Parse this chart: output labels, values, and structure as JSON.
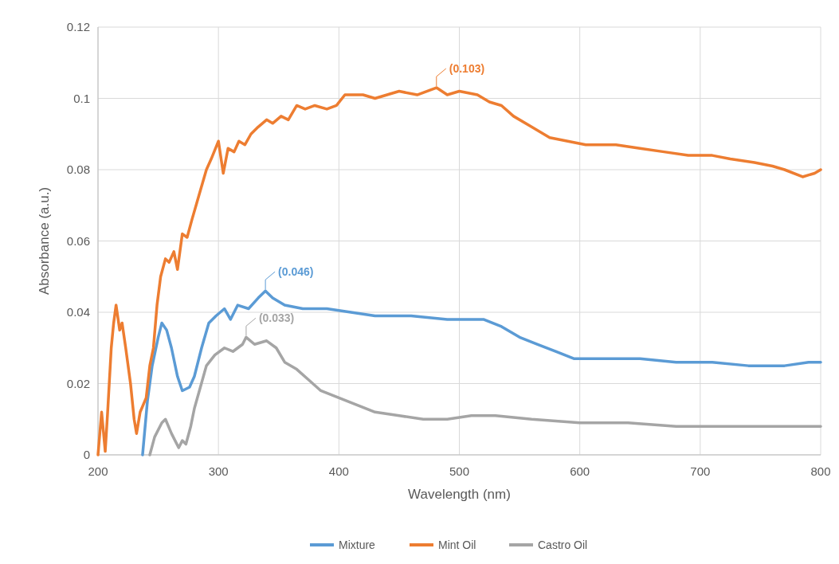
{
  "chart_data": {
    "type": "line",
    "xlabel": "Wavelength (nm)",
    "ylabel": "Absorbance (a.u.)",
    "xlim": [
      200,
      800
    ],
    "ylim": [
      0,
      0.12
    ],
    "xticks": [
      200,
      300,
      400,
      500,
      600,
      700,
      800
    ],
    "yticks": [
      0,
      0.02,
      0.04,
      0.06,
      0.08,
      0.1,
      0.12
    ],
    "grid": true,
    "legend": "bottom",
    "line_style": "solid",
    "marker": "none",
    "series": [
      {
        "name": "Mixture",
        "color": "#5b9bd5",
        "x": [
          237,
          241,
          245,
          250,
          253,
          257,
          261,
          266,
          270,
          276,
          280,
          286,
          292,
          298,
          305,
          310,
          316,
          325,
          333,
          339,
          345,
          355,
          370,
          390,
          410,
          430,
          460,
          490,
          520,
          535,
          550,
          565,
          580,
          595,
          620,
          650,
          680,
          710,
          740,
          770,
          790,
          800
        ],
        "values": [
          0,
          0.015,
          0.025,
          0.033,
          0.037,
          0.035,
          0.03,
          0.022,
          0.018,
          0.019,
          0.022,
          0.03,
          0.037,
          0.039,
          0.041,
          0.038,
          0.042,
          0.041,
          0.044,
          0.046,
          0.044,
          0.042,
          0.041,
          0.041,
          0.04,
          0.039,
          0.039,
          0.038,
          0.038,
          0.036,
          0.033,
          0.031,
          0.029,
          0.027,
          0.027,
          0.027,
          0.026,
          0.026,
          0.025,
          0.025,
          0.026,
          0.026
        ]
      },
      {
        "name": "Mint Oil",
        "color": "#ed7d31",
        "x": [
          200,
          203,
          206,
          208,
          211,
          213,
          215,
          218,
          220,
          223,
          227,
          230,
          232,
          235,
          240,
          243,
          246,
          249,
          252,
          256,
          259,
          263,
          266,
          270,
          274,
          278,
          284,
          290,
          294,
          300,
          304,
          308,
          313,
          317,
          322,
          327,
          333,
          340,
          345,
          352,
          358,
          365,
          372,
          380,
          390,
          398,
          405,
          420,
          430,
          440,
          450,
          465,
          481,
          490,
          500,
          515,
          525,
          535,
          545,
          560,
          575,
          590,
          605,
          630,
          650,
          670,
          690,
          710,
          725,
          745,
          760,
          770,
          785,
          795,
          800
        ],
        "values": [
          0,
          0.012,
          0.001,
          0.012,
          0.03,
          0.037,
          0.042,
          0.035,
          0.037,
          0.03,
          0.02,
          0.01,
          0.006,
          0.012,
          0.016,
          0.025,
          0.03,
          0.042,
          0.05,
          0.055,
          0.054,
          0.057,
          0.052,
          0.062,
          0.061,
          0.066,
          0.073,
          0.08,
          0.083,
          0.088,
          0.079,
          0.086,
          0.085,
          0.088,
          0.087,
          0.09,
          0.092,
          0.094,
          0.093,
          0.095,
          0.094,
          0.098,
          0.097,
          0.098,
          0.097,
          0.098,
          0.101,
          0.101,
          0.1,
          0.101,
          0.102,
          0.101,
          0.103,
          0.101,
          0.102,
          0.101,
          0.099,
          0.098,
          0.095,
          0.092,
          0.089,
          0.088,
          0.087,
          0.087,
          0.086,
          0.085,
          0.084,
          0.084,
          0.083,
          0.082,
          0.081,
          0.08,
          0.078,
          0.079,
          0.08
        ]
      },
      {
        "name": "Castro Oil",
        "color": "#a5a5a5",
        "x": [
          243,
          247,
          253,
          256,
          261,
          264,
          267,
          270,
          273,
          277,
          280,
          285,
          290,
          297,
          305,
          312,
          320,
          323,
          330,
          340,
          348,
          355,
          365,
          375,
          385,
          400,
          415,
          430,
          450,
          470,
          490,
          510,
          530,
          560,
          600,
          640,
          680,
          720,
          760,
          800
        ],
        "values": [
          0,
          0.005,
          0.009,
          0.01,
          0.006,
          0.004,
          0.002,
          0.004,
          0.003,
          0.008,
          0.013,
          0.019,
          0.025,
          0.028,
          0.03,
          0.029,
          0.031,
          0.033,
          0.031,
          0.032,
          0.03,
          0.026,
          0.024,
          0.021,
          0.018,
          0.016,
          0.014,
          0.012,
          0.011,
          0.01,
          0.01,
          0.011,
          0.011,
          0.01,
          0.009,
          0.009,
          0.008,
          0.008,
          0.008,
          0.008
        ]
      }
    ],
    "annotations": [
      {
        "text": "(0.103)",
        "x": 481,
        "y": 0.103
      },
      {
        "text": "(0.046)",
        "x": 339,
        "y": 0.046
      },
      {
        "text": "(0.033)",
        "x": 323,
        "y": 0.033
      }
    ]
  }
}
